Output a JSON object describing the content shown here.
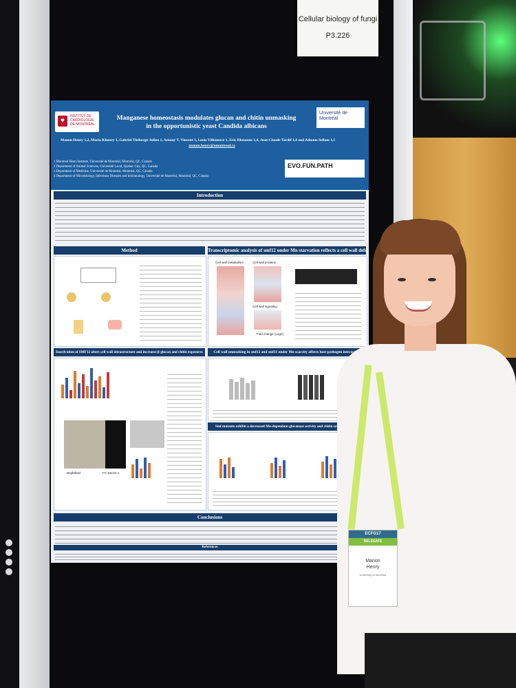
{
  "booth_label": {
    "line1": "Cellular biology of fungi",
    "line2": "P3.226"
  },
  "poster": {
    "logo_left": "INSTITUT DE CARDIOLOGIE DE MONTRÉAL",
    "logo_right": "Université de Montréal",
    "title_line1": "Manganese homeostasis modulates glucan and chitin unmasking",
    "title_line2": "in the opportunistic yeast Candida albicans",
    "authors": "Manon Henry 1,2, Maria Khoury 1, Gabriel Théberge-Julien 1, Antony T. Vincent 3, Louis Villeneuve 1, Eric Rhéaume 1,4, Jean-Claude Tardif 1,4 and Adnane Sellam 1,5",
    "email": "manon.henry@umontreal.ca",
    "affiliations": [
      "1 Montreal Heart Institute, Université de Montréal, Montréal, QC, Canada",
      "2 Department of Animal Sciences, Université Laval, Quebec City, QC, Canada",
      "3 Department of Medicine, Université de Montréal, Montréal, QC, Canada",
      "4 Department of Microbiology, Infectious Diseases and Immunology, Université de Montréal, Montréal, QC, Canada"
    ],
    "evo_logo": "EVO.FUN.PATH",
    "sections": {
      "introduction": "Introduction",
      "method": "Method",
      "transcriptomic": "Transcriptomic analysis of smf12 under Mn starvation reflects a cell wall defect",
      "inactivation": "Inactivation of SMF12 alters cell wall ultrastructure and increases β-glucan and chitin exposures",
      "unmasking": "Cell wall unmasking in smf12 and smf11 under Mn scarcity affects host-pathogen interaction",
      "smf_mutants": "Smf mutants exhibit a decreased Mn-dependant glucanase activity and chitin synthesis altered",
      "conclusions": "Conclusions",
      "references": "References"
    },
    "panel_labels": {
      "cell_wall_metabolism": "Cell wall metabolism",
      "cell_wall_proteins": "Cell wall proteins",
      "cell_wall_signaling": "Cell wall signaling",
      "fold_change": "Fold change (Log2)",
      "brightfield": "Brightfield",
      "fc_dectin": "FC-Dectin-1"
    }
  },
  "badge": {
    "top": "ECFG17",
    "role": "DELEGATE",
    "name_line1": "Manon",
    "name_line2": "Henry",
    "affiliation": "University of Montreal"
  },
  "colors": {
    "poster_header": "#1d5f9f",
    "section_bar": "#173d6a",
    "accent_orange": "#e07a2f",
    "accent_blue": "#2f5fae"
  }
}
